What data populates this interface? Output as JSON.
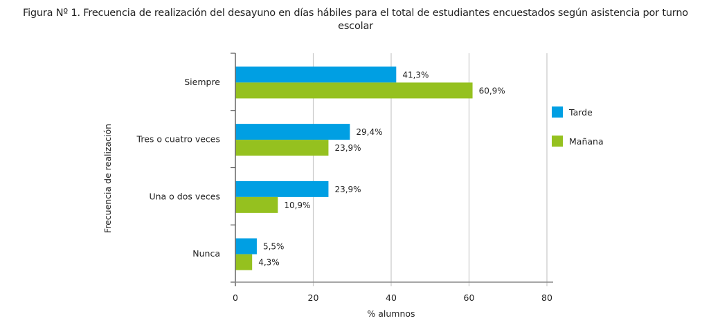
{
  "chart_data": {
    "type": "bar",
    "orientation": "horizontal",
    "title_line1": "Figura Nº 1. Frecuencia de realización del desayuno en días hábiles para el total de estudiantes encuestados según asistencia por turno",
    "title_line2": "escolar",
    "xlabel": "% alumnos",
    "ylabel": "Frecuencia de realización",
    "xlim": [
      0,
      80
    ],
    "xticks": [
      0,
      20,
      40,
      60,
      80
    ],
    "xtick_labels": [
      "0",
      "20",
      "40",
      "60",
      "80"
    ],
    "grid": true,
    "legend_position": "right",
    "categories": [
      "Siempre",
      "Tres o cuatro veces",
      "Una o dos veces",
      "Nunca"
    ],
    "series": [
      {
        "name": "Tarde",
        "color": "#009FE3",
        "values": [
          41.3,
          29.4,
          23.9,
          5.5
        ],
        "labels": [
          "41,3%",
          "29,4%",
          "23,9%",
          "5,5%"
        ]
      },
      {
        "name": "Mañana",
        "color": "#95C11F",
        "values": [
          60.9,
          23.9,
          10.9,
          4.3
        ],
        "labels": [
          "60,9%",
          "23,9%",
          "10,9%",
          "4,3%"
        ]
      }
    ]
  }
}
